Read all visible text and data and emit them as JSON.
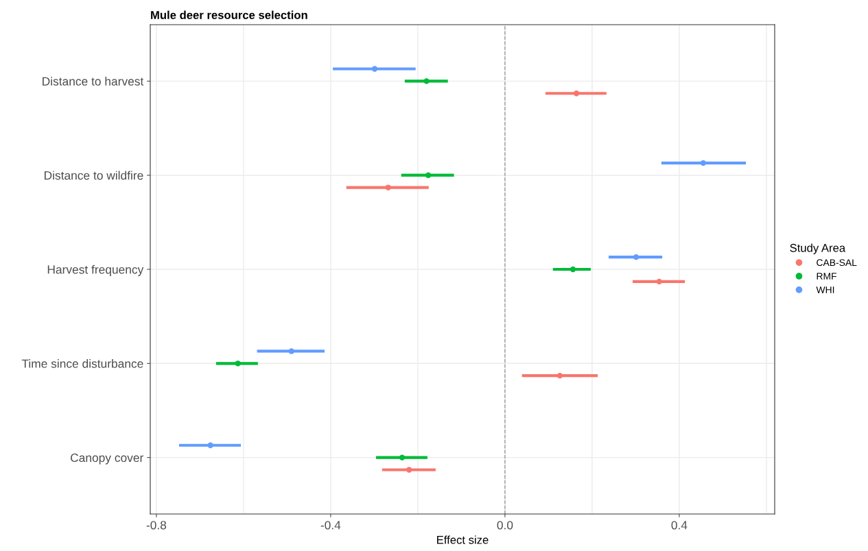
{
  "chart_data": {
    "type": "scatter",
    "orientation": "horizontal",
    "title": "Mule deer resource selection",
    "xlabel": "Effect size",
    "legend_title": "Study Area",
    "legend": "right",
    "grid": true,
    "marker": "circle",
    "categories": [
      "Distance to harvest",
      "Distance to wildfire",
      "Harvest frequency",
      "Time since disturbance",
      "Canopy cover"
    ],
    "xlim": [
      -0.814,
      0.619
    ],
    "xticks": [
      {
        "value": -0.8,
        "label": "-0.8"
      },
      {
        "value": -0.4,
        "label": "-0.4"
      },
      {
        "value": 0.0,
        "label": "0.0"
      },
      {
        "value": 0.4,
        "label": "0.4"
      }
    ],
    "ref_lines": [
      {
        "axis": "x",
        "value": 0,
        "label": null,
        "color": "#999999",
        "line_style": "dashed"
      }
    ],
    "series": [
      {
        "name": "CAB-SAL",
        "color": "#f8766d",
        "values": [
          0.164,
          -0.268,
          0.354,
          0.126,
          -0.22
        ],
        "errors": [
          [
            0.093,
            0.233
          ],
          [
            -0.364,
            -0.175
          ],
          [
            0.293,
            0.413
          ],
          [
            0.039,
            0.213
          ],
          [
            -0.282,
            -0.159
          ]
        ]
      },
      {
        "name": "RMF",
        "color": "#00ba38",
        "values": [
          -0.18,
          -0.176,
          0.156,
          -0.613,
          -0.236
        ],
        "errors": [
          [
            -0.23,
            -0.131
          ],
          [
            -0.238,
            -0.117
          ],
          [
            0.11,
            0.197
          ],
          [
            -0.663,
            -0.567
          ],
          [
            -0.296,
            -0.178
          ]
        ]
      },
      {
        "name": "WHI",
        "color": "#619cff",
        "values": [
          -0.299,
          0.455,
          0.301,
          -0.49,
          -0.676
        ],
        "errors": [
          [
            -0.395,
            -0.205
          ],
          [
            0.359,
            0.553
          ],
          [
            0.238,
            0.361
          ],
          [
            -0.569,
            -0.414
          ],
          [
            -0.748,
            -0.606
          ]
        ]
      }
    ]
  }
}
